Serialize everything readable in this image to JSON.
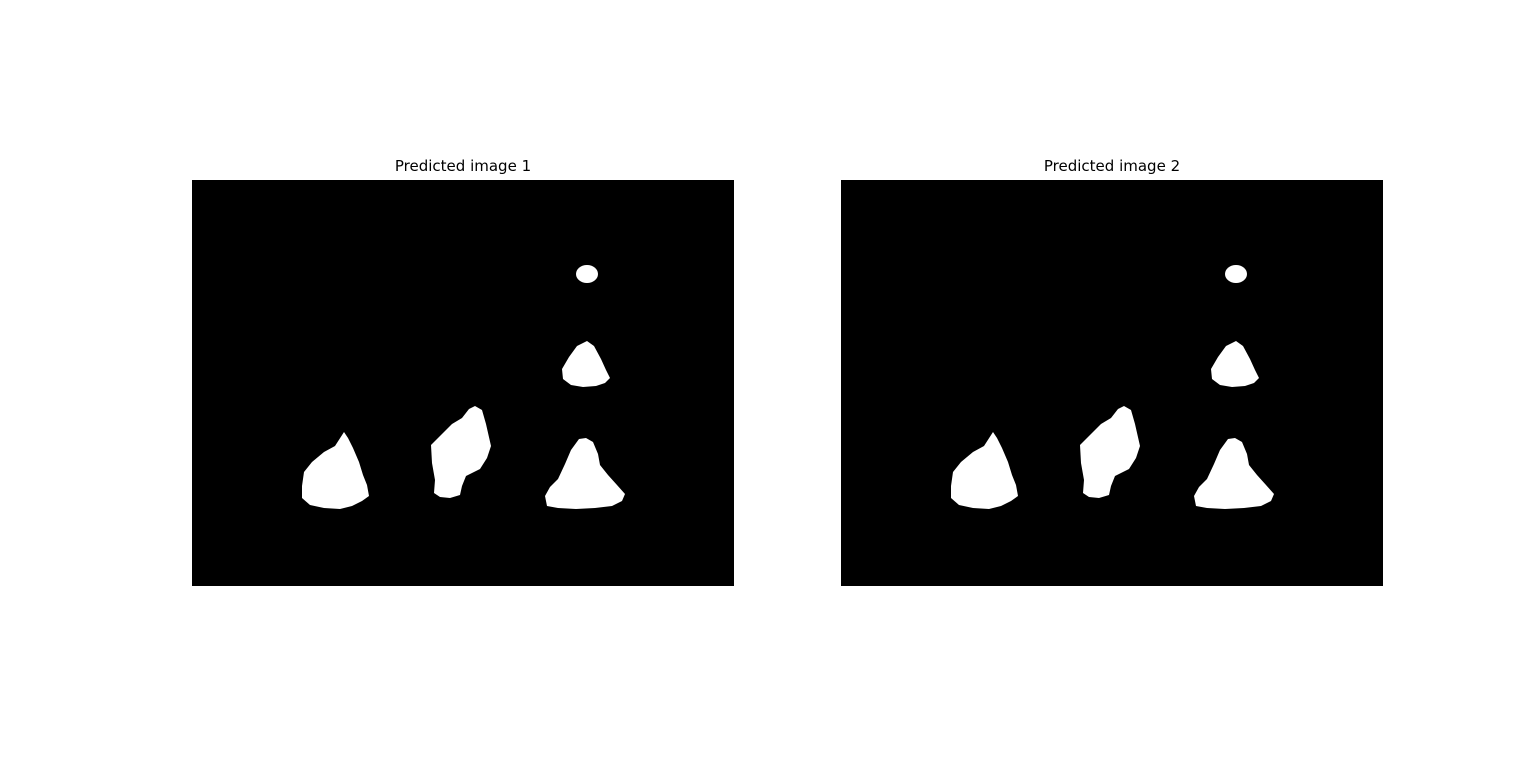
{
  "figure": {
    "panels": [
      {
        "title": "Predicted image 1"
      },
      {
        "title": "Predicted image 2"
      }
    ],
    "colors": {
      "background": "#000000",
      "mask": "#ffffff"
    }
  }
}
